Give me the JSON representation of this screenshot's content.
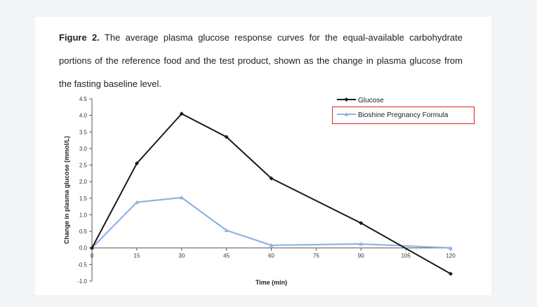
{
  "caption": {
    "lead": "Figure 2.",
    "text": "The average plasma glucose response curves for the equal-available carbohydrate portions of the reference food and the test product, shown as the change in plasma glucose from the fasting baseline level."
  },
  "colors": {
    "glucose": "#1a1a1a",
    "bioshine": "#8eb4e0",
    "highlight": "#e02020"
  },
  "chart_data": {
    "type": "line",
    "xlabel": "Time (min)",
    "ylabel": "Change in plasma glucose (mmol/L)",
    "x_ticks": [
      0,
      15,
      30,
      45,
      60,
      75,
      90,
      105,
      120
    ],
    "y_ticks": [
      -1.0,
      -0.5,
      0.0,
      0.5,
      1.0,
      1.5,
      2.0,
      2.5,
      3.0,
      3.5,
      4.0,
      4.5
    ],
    "xlim": [
      0,
      120
    ],
    "ylim": [
      -1.0,
      4.5
    ],
    "legend_position": "top-right",
    "grid": false,
    "series": [
      {
        "name": "Glucose",
        "color": "#1a1a1a",
        "marker": "diamond",
        "x": [
          0,
          15,
          30,
          45,
          60,
          90,
          120
        ],
        "y": [
          0.0,
          2.55,
          4.05,
          3.35,
          2.1,
          0.75,
          -0.78
        ]
      },
      {
        "name": "Bioshine Pregnancy Formula",
        "color": "#8eb4e0",
        "marker": "triangle",
        "x": [
          0,
          15,
          30,
          45,
          60,
          90,
          120
        ],
        "y": [
          0.0,
          1.38,
          1.52,
          0.53,
          0.08,
          0.12,
          0.0
        ]
      }
    ]
  }
}
